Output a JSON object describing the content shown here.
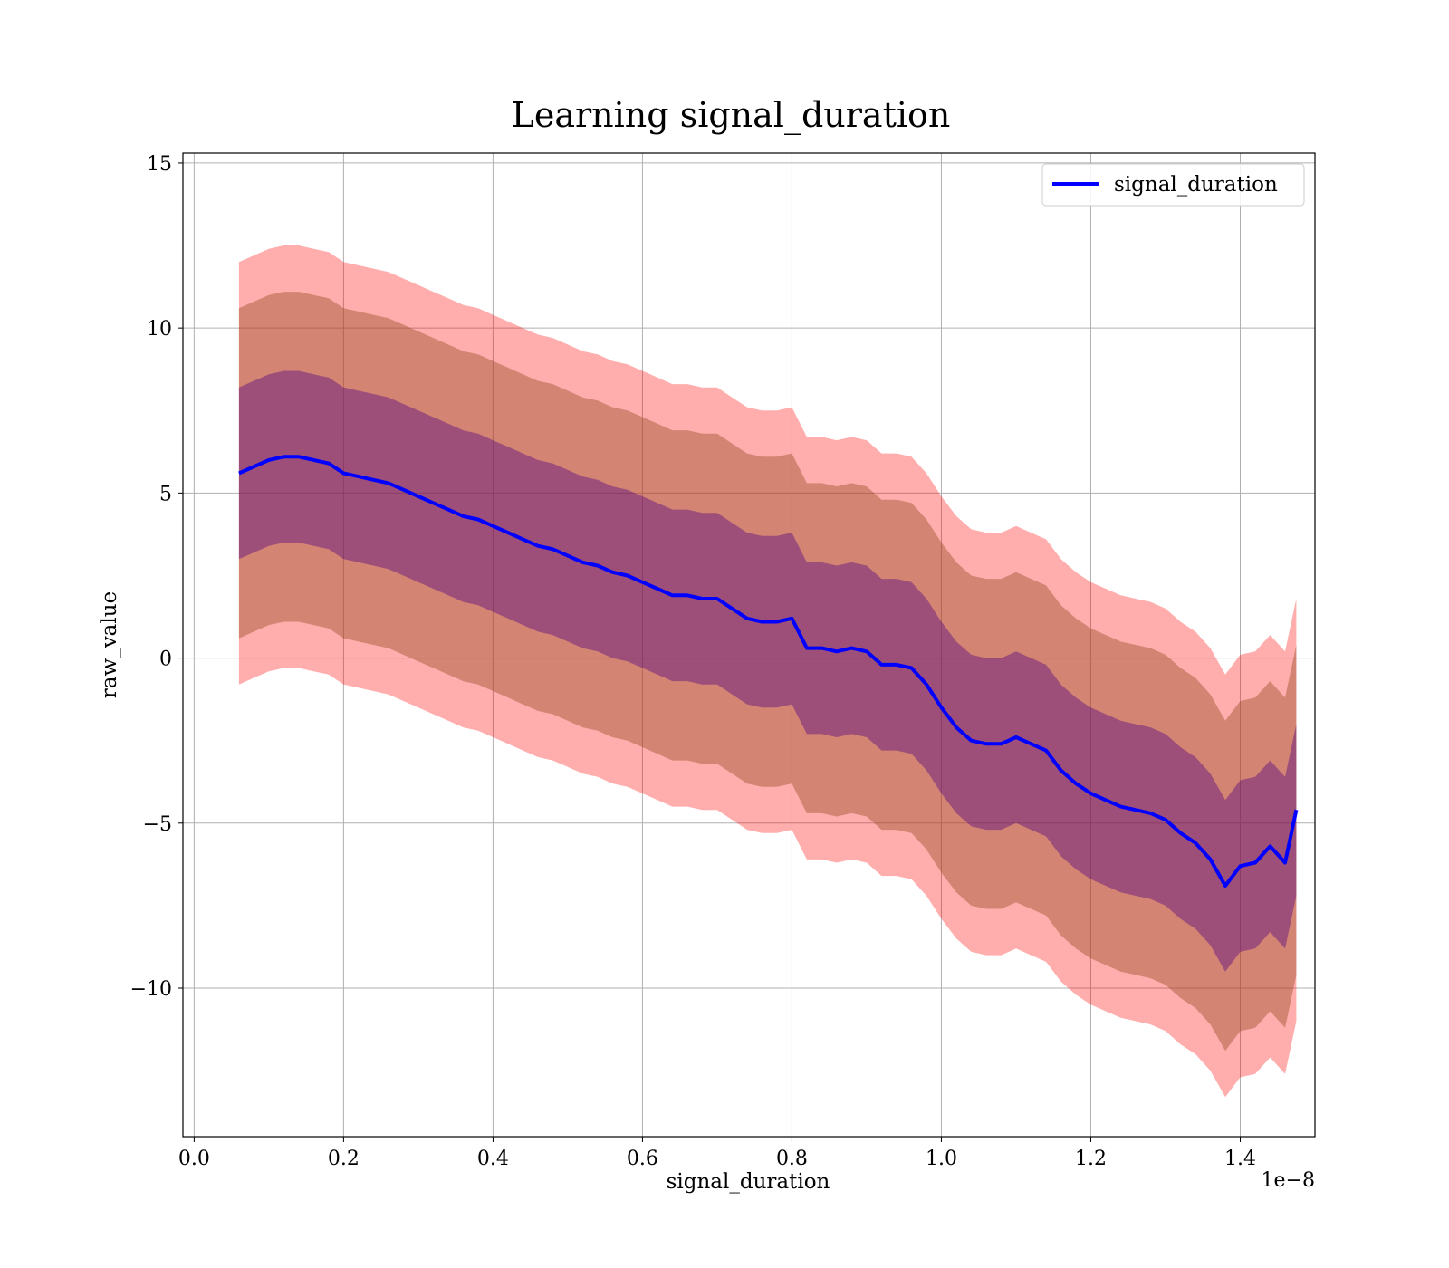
{
  "chart_data": {
    "type": "line",
    "title": "Learning signal_duration",
    "xlabel": "signal_duration",
    "ylabel": "raw_value",
    "x_offset_label": "1e−8",
    "xlim": [
      -0.015,
      1.5
    ],
    "ylim": [
      -14.5,
      15.3
    ],
    "x_ticks": [
      0.0,
      0.2,
      0.4,
      0.6,
      0.8,
      1.0,
      1.2,
      1.4
    ],
    "x_tick_labels": [
      "0.0",
      "0.2",
      "0.4",
      "0.6",
      "0.8",
      "1.0",
      "1.2",
      "1.4"
    ],
    "y_ticks": [
      -10,
      -5,
      0,
      5,
      10,
      15
    ],
    "y_tick_labels": [
      "−10",
      "−5",
      "0",
      "5",
      "10",
      "15"
    ],
    "grid": true,
    "legend_position": "top-right",
    "colors": {
      "mean_line": "#0000ff",
      "outer_band": "#ff0000",
      "middle_band": "#a0522d",
      "inner_band": "#4b0082",
      "grid": "#b0b0b0"
    },
    "series": [
      {
        "name": "signal_duration",
        "x": [
          0.06,
          0.08,
          0.1,
          0.12,
          0.14,
          0.16,
          0.18,
          0.2,
          0.22,
          0.24,
          0.26,
          0.28,
          0.3,
          0.32,
          0.34,
          0.36,
          0.38,
          0.4,
          0.42,
          0.44,
          0.46,
          0.48,
          0.5,
          0.52,
          0.54,
          0.56,
          0.58,
          0.6,
          0.62,
          0.64,
          0.66,
          0.68,
          0.7,
          0.72,
          0.74,
          0.76,
          0.78,
          0.8,
          0.82,
          0.84,
          0.86,
          0.88,
          0.9,
          0.92,
          0.94,
          0.96,
          0.98,
          1.0,
          1.02,
          1.04,
          1.06,
          1.08,
          1.1,
          1.12,
          1.14,
          1.16,
          1.18,
          1.2,
          1.22,
          1.24,
          1.26,
          1.28,
          1.3,
          1.32,
          1.34,
          1.36,
          1.38,
          1.4,
          1.42,
          1.44,
          1.46,
          1.475
        ],
        "y": [
          5.6,
          5.8,
          6.0,
          6.1,
          6.1,
          6.0,
          5.9,
          5.6,
          5.5,
          5.4,
          5.3,
          5.1,
          4.9,
          4.7,
          4.5,
          4.3,
          4.2,
          4.0,
          3.8,
          3.6,
          3.4,
          3.3,
          3.1,
          2.9,
          2.8,
          2.6,
          2.5,
          2.3,
          2.1,
          1.9,
          1.9,
          1.8,
          1.8,
          1.5,
          1.2,
          1.1,
          1.1,
          1.2,
          0.3,
          0.3,
          0.2,
          0.3,
          0.2,
          -0.2,
          -0.2,
          -0.3,
          -0.8,
          -1.5,
          -2.1,
          -2.5,
          -2.6,
          -2.6,
          -2.4,
          -2.6,
          -2.8,
          -3.4,
          -3.8,
          -4.1,
          -4.3,
          -4.5,
          -4.6,
          -4.7,
          -4.9,
          -5.3,
          -5.6,
          -6.1,
          -6.9,
          -6.3,
          -6.2,
          -5.7,
          -6.2,
          -4.6
        ],
        "bands": [
          {
            "label": "outer",
            "lower_offset": -6.4,
            "upper_offset": 6.4
          },
          {
            "label": "middle",
            "lower_offset": -5.0,
            "upper_offset": 5.0
          },
          {
            "label": "inner",
            "lower_offset": -2.6,
            "upper_offset": 2.6
          }
        ]
      }
    ]
  }
}
